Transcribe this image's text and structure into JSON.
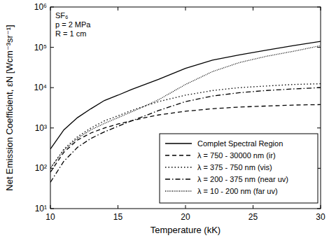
{
  "chart_data": {
    "type": "line",
    "x_label": "Temperature (kK)",
    "y_label": "Net Emission Coefficient, εN [Wcm⁻³sr⁻¹]",
    "annotations": [
      "SF₆",
      "p = 2 MPa",
      "R = 1 cm"
    ],
    "log": "y",
    "grid": false,
    "legend": "lower right",
    "xlim": [
      10,
      30
    ],
    "xticks": [
      10,
      15,
      20,
      25,
      30
    ],
    "ylim": [
      10,
      1000000
    ],
    "yticks": [
      {
        "value": 10,
        "label": "10¹"
      },
      {
        "value": 100,
        "label": "10²"
      },
      {
        "value": 1000,
        "label": "10³"
      },
      {
        "value": 10000,
        "label": "10⁴"
      },
      {
        "value": 100000,
        "label": "10⁵"
      },
      {
        "value": 1000000,
        "label": "10⁶"
      }
    ],
    "x": [
      10,
      11,
      12,
      13,
      14,
      15,
      16,
      17,
      18,
      20,
      22,
      24,
      26,
      28,
      30
    ],
    "series": [
      {
        "name": "Complet Spectral Region",
        "color": "#000000",
        "line_style": "solid",
        "values": [
          300,
          900,
          1800,
          3000,
          4800,
          6500,
          9000,
          12000,
          16000,
          30000,
          48000,
          65000,
          85000,
          110000,
          140000
        ]
      },
      {
        "name": "λ = 750 - 30000 nm (ir)",
        "color": "#000000",
        "line_style": "dashed",
        "values": [
          80,
          250,
          500,
          750,
          1000,
          1250,
          1500,
          1800,
          2100,
          2600,
          3000,
          3300,
          3500,
          3700,
          3800
        ]
      },
      {
        "name": "λ = 375 - 750 nm (vis)",
        "color": "#000000",
        "line_style": "dotted",
        "values": [
          100,
          300,
          600,
          1000,
          1500,
          2000,
          2700,
          3500,
          4500,
          6500,
          8500,
          10000,
          11000,
          12000,
          12500
        ]
      },
      {
        "name": "λ = 200 - 375 nm (near uv)",
        "color": "#000000",
        "line_style": "dashdot",
        "values": [
          45,
          150,
          330,
          550,
          800,
          1100,
          1500,
          2000,
          2700,
          4500,
          6200,
          7500,
          8500,
          9300,
          10000
        ]
      },
      {
        "name": "λ = 10 - 200 nm (far uv)",
        "color": "#000000",
        "line_style": "densely_dotted",
        "values": [
          100,
          280,
          550,
          900,
          1300,
          1800,
          2500,
          3500,
          5000,
          12000,
          25000,
          42000,
          60000,
          80000,
          110000
        ]
      }
    ]
  }
}
